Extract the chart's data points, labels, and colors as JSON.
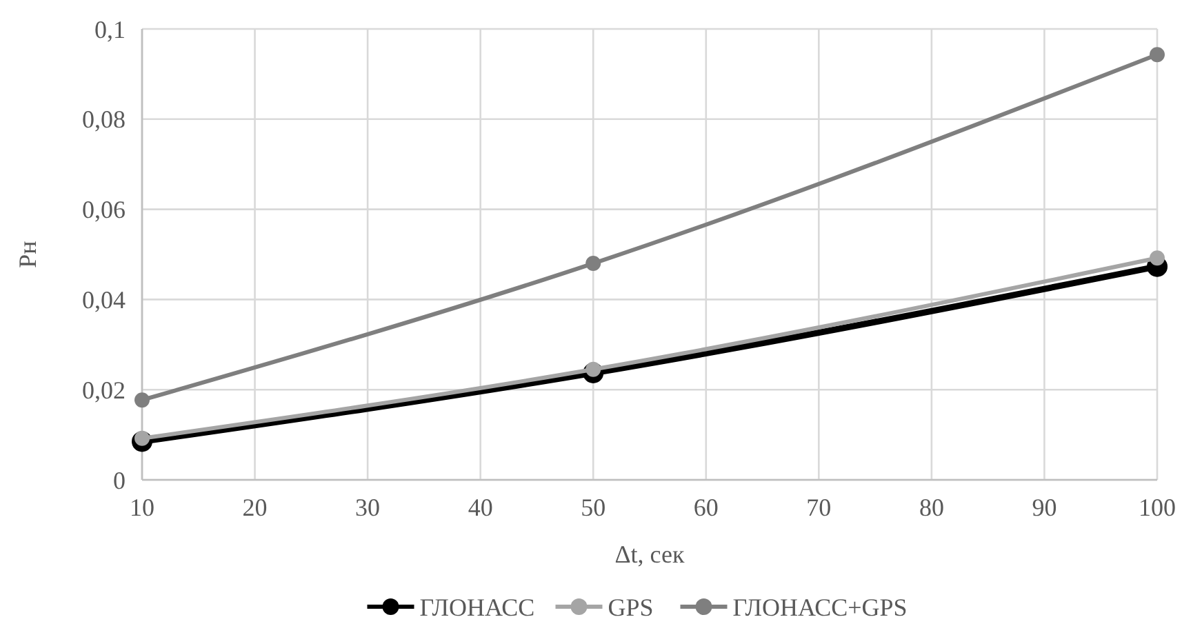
{
  "chart_data": {
    "type": "line",
    "xlabel": "Δt, сек",
    "ylabel": "Pн",
    "x": [
      10,
      50,
      100
    ],
    "series": [
      {
        "name": "ГЛОНАСС",
        "color": "#000000",
        "values": [
          0.0085,
          0.0237,
          0.0473
        ]
      },
      {
        "name": "GPS",
        "color": "#a5a5a5",
        "values": [
          0.0092,
          0.0245,
          0.0492
        ]
      },
      {
        "name": "ГЛОНАСС+GPS",
        "color": "#7f7f7f",
        "values": [
          0.0177,
          0.048,
          0.0943
        ]
      }
    ],
    "xlim": [
      10,
      100
    ],
    "xticks": [
      10,
      20,
      30,
      40,
      50,
      60,
      70,
      80,
      90,
      100
    ],
    "ylim": [
      0,
      0.1
    ],
    "yticks": [
      {
        "value": 0,
        "label": "0"
      },
      {
        "value": 0.02,
        "label": "0,02"
      },
      {
        "value": 0.04,
        "label": "0,04"
      },
      {
        "value": 0.06,
        "label": "0,06"
      },
      {
        "value": 0.08,
        "label": "0,08"
      },
      {
        "value": 0.1,
        "label": "0,1"
      }
    ],
    "grid": true,
    "legend": "bottom",
    "marker": "circle",
    "line_style": "solid"
  }
}
